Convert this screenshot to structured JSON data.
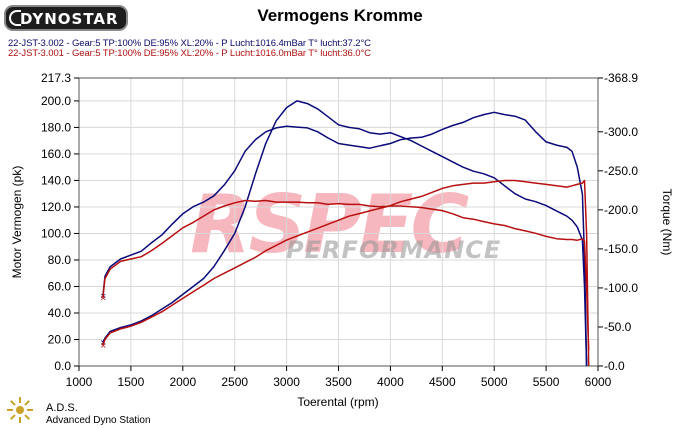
{
  "header": {
    "logo_text": "DYNOSTAR",
    "title": "Vermogens Kromme",
    "runs": [
      {
        "label": "22-JST-3.002 - Gear:5 TP:100% DE:95% XL:20%   - P Lucht:1016.4mBar T° lucht:37.2°C",
        "color": "#0a0a6a"
      },
      {
        "label": "22-JST-3.001 - Gear:5 TP:100% DE:95% XL:20%   - P Lucht:1016.0mBar T° lucht:36.0°C",
        "color": "#b01010"
      }
    ]
  },
  "watermark": {
    "brand": "RSPEC",
    "sub": "PERFORMANCE"
  },
  "footer": {
    "brand": "A.D.S.",
    "subtitle": "Advanced Dyno Station"
  },
  "colors": {
    "run1": "#0a0a7a",
    "run2": "#b81010",
    "grid": "#d8d8d8",
    "watermark": "#f07c8a"
  },
  "chart_data": {
    "type": "line",
    "xlabel": "Toerental (rpm)",
    "ylabel": "Motor Vermogen (pk)",
    "ylabel_right": "Torque (Nm)",
    "xlim": [
      1000,
      6000
    ],
    "ylim": [
      0,
      217.3
    ],
    "ylim_right": [
      0,
      368.9
    ],
    "x_ticks": [
      1000,
      1500,
      2000,
      2500,
      3000,
      3500,
      4000,
      4500,
      5000,
      5500,
      6000
    ],
    "y_ticks": [
      0.0,
      20.0,
      40.0,
      60.0,
      80.0,
      100.0,
      120.0,
      140.0,
      160.0,
      180.0,
      200.0,
      217.3
    ],
    "y_ticks_right": [
      0.0,
      50.0,
      100.0,
      150.0,
      200.0,
      250.0,
      300.0,
      368.9
    ],
    "y_tick_labels": [
      "0.0",
      "20.0",
      "40.0",
      "60.0",
      "80.0",
      "100.0",
      "120.0",
      "140.0",
      "160.0",
      "180.0",
      "200.0",
      "217.3"
    ],
    "y_tick_labels_right": [
      "-0.0",
      "-50.0",
      "-100.0",
      "-150.0",
      "-200.0",
      "-250.0",
      "-300.0",
      "-368.9"
    ],
    "grid": true,
    "series": [
      {
        "name": "22-JST-3.002 Power",
        "axis": "left",
        "color": "#0a0a7a",
        "x": [
          1230,
          1250,
          1300,
          1400,
          1500,
          1600,
          1700,
          1800,
          1900,
          2000,
          2100,
          2200,
          2300,
          2400,
          2500,
          2600,
          2700,
          2800,
          2900,
          3000,
          3100,
          3200,
          3300,
          3400,
          3500,
          3600,
          3700,
          3800,
          3900,
          4000,
          4100,
          4200,
          4300,
          4400,
          4500,
          4600,
          4700,
          4800,
          4900,
          5000,
          5100,
          5200,
          5300,
          5400,
          5500,
          5600,
          5700,
          5750,
          5800,
          5850,
          5870,
          5890
        ],
        "y": [
          18,
          21,
          26,
          29,
          31,
          34,
          38,
          43,
          48,
          54,
          60,
          66,
          75,
          87,
          100,
          120,
          145,
          168,
          185,
          195,
          200,
          198,
          194,
          188,
          182,
          180,
          179,
          176,
          175,
          176,
          173,
          170,
          166,
          162,
          158,
          154,
          150,
          147,
          145,
          142,
          136,
          130,
          126,
          124,
          121,
          117,
          113,
          110,
          105,
          95,
          60,
          0
        ]
      },
      {
        "name": "22-JST-3.002 Torque",
        "axis": "right",
        "color": "#0a0a7a",
        "x": [
          1230,
          1250,
          1300,
          1400,
          1500,
          1600,
          1700,
          1800,
          1900,
          2000,
          2100,
          2200,
          2300,
          2400,
          2500,
          2600,
          2700,
          2800,
          2900,
          3000,
          3100,
          3200,
          3300,
          3400,
          3500,
          3600,
          3700,
          3800,
          3900,
          4000,
          4100,
          4200,
          4300,
          4400,
          4500,
          4600,
          4700,
          4800,
          4900,
          5000,
          5100,
          5200,
          5300,
          5400,
          5500,
          5600,
          5700,
          5750,
          5800,
          5850,
          5870,
          5890
        ],
        "y": [
          90,
          115,
          127,
          137,
          142,
          147,
          158,
          168,
          182,
          195,
          204,
          210,
          218,
          232,
          250,
          275,
          290,
          300,
          305,
          307,
          306,
          305,
          300,
          292,
          285,
          283,
          281,
          279,
          282,
          285,
          290,
          292,
          293,
          297,
          303,
          308,
          312,
          318,
          322,
          325,
          322,
          320,
          315,
          300,
          287,
          283,
          280,
          275,
          255,
          220,
          140,
          0
        ]
      },
      {
        "name": "22-JST-3.001 Power",
        "axis": "left",
        "color": "#b81010",
        "x": [
          1230,
          1250,
          1300,
          1400,
          1500,
          1600,
          1700,
          1800,
          1900,
          2000,
          2100,
          2200,
          2300,
          2400,
          2500,
          2600,
          2700,
          2800,
          2900,
          3000,
          3100,
          3200,
          3300,
          3400,
          3500,
          3600,
          3700,
          3800,
          3900,
          4000,
          4100,
          4200,
          4300,
          4400,
          4500,
          4600,
          4700,
          4800,
          4900,
          5000,
          5100,
          5200,
          5300,
          5400,
          5500,
          5600,
          5700,
          5750,
          5800,
          5850,
          5870,
          5890,
          5910
        ],
        "y": [
          16,
          20,
          25,
          28,
          30,
          33,
          37,
          41,
          46,
          51,
          56,
          61,
          66,
          70,
          74,
          78,
          82,
          87,
          91,
          95,
          98,
          101,
          104,
          107,
          110,
          113,
          115,
          117,
          119,
          121,
          124,
          126,
          128,
          131,
          134,
          136,
          137,
          138,
          138,
          139,
          140,
          140,
          139,
          138,
          137,
          136,
          135,
          136,
          137,
          138,
          140,
          100,
          0
        ]
      },
      {
        "name": "22-JST-3.001 Torque",
        "axis": "right",
        "color": "#b81010",
        "x": [
          1230,
          1250,
          1300,
          1400,
          1500,
          1600,
          1700,
          1800,
          1900,
          2000,
          2100,
          2200,
          2300,
          2400,
          2500,
          2600,
          2700,
          2800,
          2900,
          3000,
          3100,
          3200,
          3300,
          3400,
          3500,
          3600,
          3700,
          3800,
          3900,
          4000,
          4100,
          4200,
          4300,
          4400,
          4500,
          4600,
          4700,
          4800,
          4900,
          5000,
          5100,
          5200,
          5300,
          5400,
          5500,
          5600,
          5700,
          5750,
          5800,
          5850,
          5870,
          5890,
          5910
        ],
        "y": [
          88,
          112,
          124,
          134,
          137,
          140,
          148,
          157,
          167,
          177,
          184,
          192,
          200,
          205,
          209,
          212,
          211,
          212,
          210,
          210,
          210,
          209,
          209,
          207,
          208,
          207,
          207,
          205,
          204,
          205,
          205,
          204,
          203,
          201,
          199,
          195,
          190,
          188,
          185,
          182,
          180,
          176,
          173,
          170,
          166,
          163,
          162,
          162,
          161,
          163,
          160,
          100,
          20
        ]
      }
    ]
  }
}
